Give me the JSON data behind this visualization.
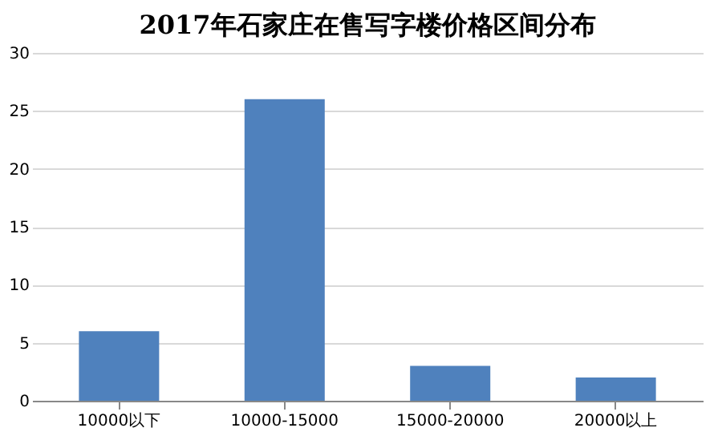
{
  "chart_data": {
    "type": "bar",
    "title": "2017年石家庄在售写字楼价格区间分布",
    "categories": [
      "10000以下",
      "10000-15000",
      "15000-20000",
      "20000以上"
    ],
    "values": [
      6,
      26,
      3,
      2
    ],
    "color": "#4f81bd",
    "ylim": [
      0,
      30
    ],
    "yticks": [
      0,
      5,
      10,
      15,
      20,
      25,
      30
    ],
    "grid": "y"
  }
}
